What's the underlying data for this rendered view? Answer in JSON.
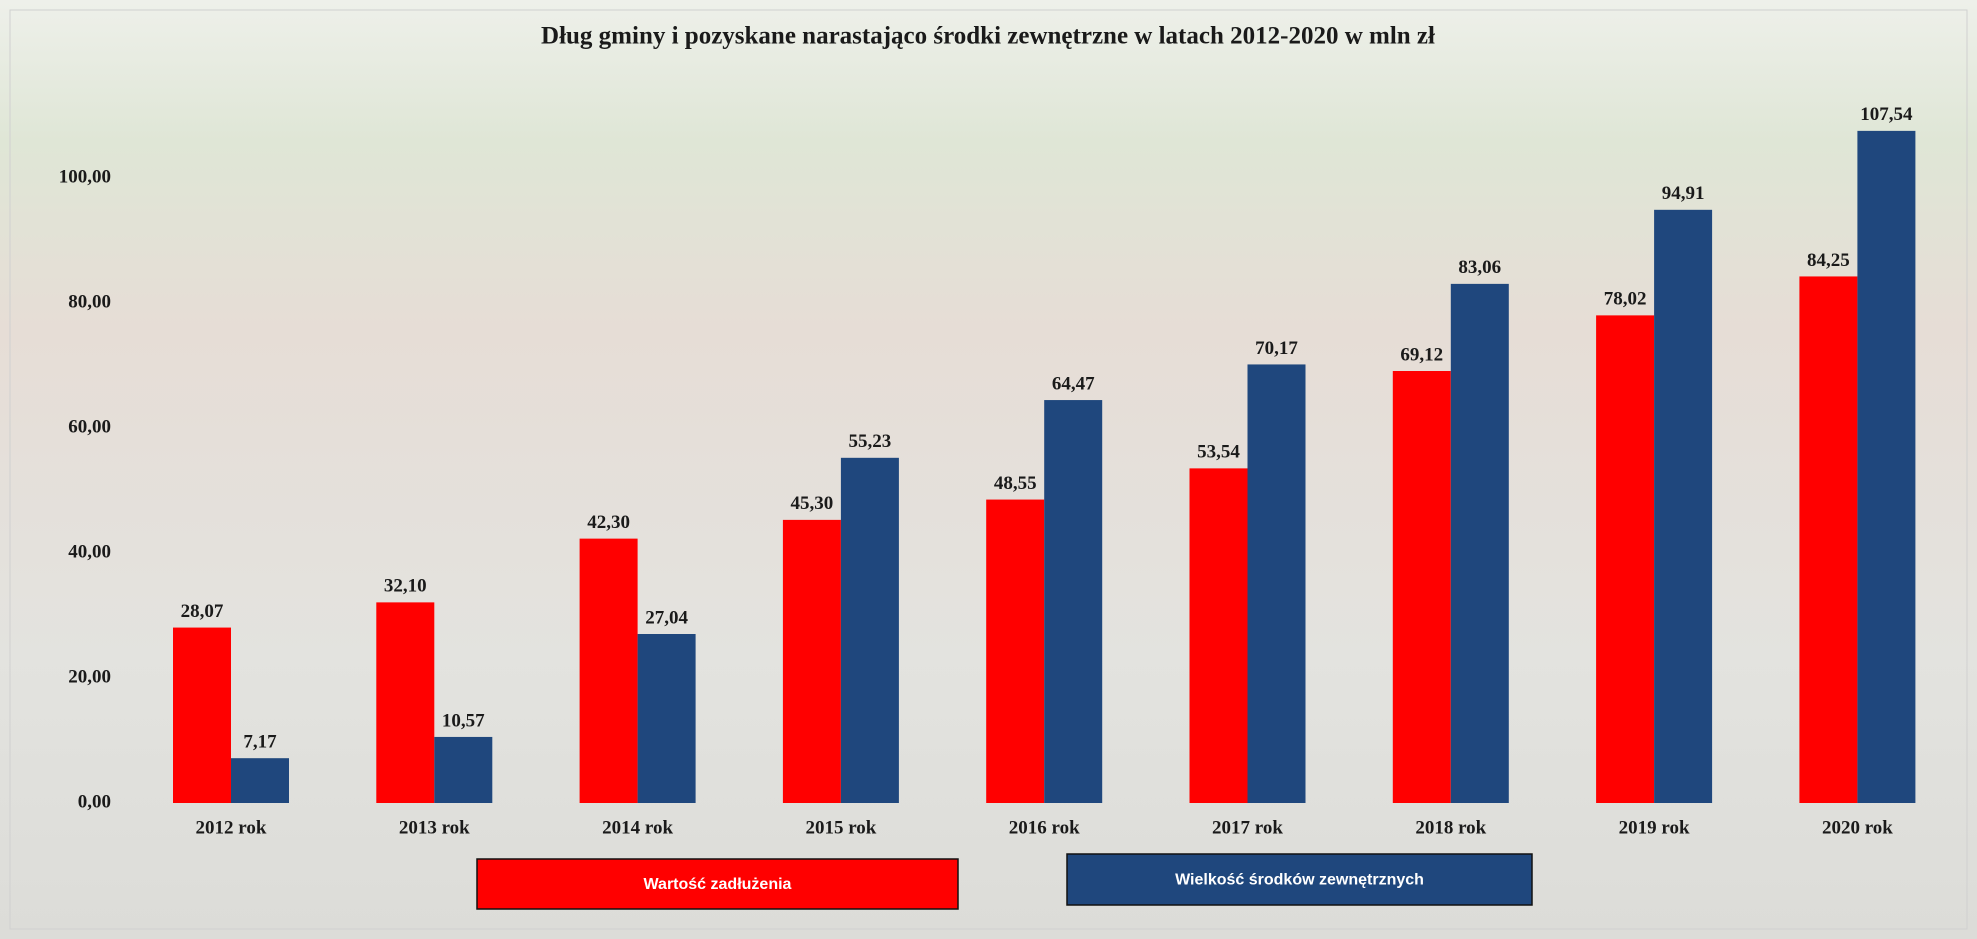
{
  "chart_data": {
    "type": "bar",
    "title": "Dług gminy i pozyskane narastająco środki zewnętrzne w latach 2012-2020 w mln zł",
    "categories": [
      "2012 rok",
      "2013 rok",
      "2014 rok",
      "2015 rok",
      "2016 rok",
      "2017 rok",
      "2018 rok",
      "2019 rok",
      "2020 rok"
    ],
    "series": [
      {
        "name": "Wartość zadłużenia",
        "color": "#ff0000",
        "values": [
          28.07,
          32.1,
          42.3,
          45.3,
          48.55,
          53.54,
          69.12,
          78.02,
          84.25
        ],
        "value_labels": [
          "28,07",
          "32,10",
          "42,30",
          "45,30",
          "48,55",
          "53,54",
          "69,12",
          "78,02",
          "84,25"
        ]
      },
      {
        "name": "Wielkość środków zewnętrznych",
        "color": "#1f477d",
        "values": [
          7.17,
          10.57,
          27.04,
          55.23,
          64.47,
          70.17,
          83.06,
          94.91,
          107.54
        ],
        "value_labels": [
          "7,17",
          "10,57",
          "27,04",
          "55,23",
          "64,47",
          "70,17",
          "83,06",
          "94,91",
          "107,54"
        ]
      }
    ],
    "ylim": [
      0,
      110
    ],
    "yticks": [
      {
        "value": 0,
        "label": "0,00"
      },
      {
        "value": 20,
        "label": "20,00"
      },
      {
        "value": 40,
        "label": "40,00"
      },
      {
        "value": 60,
        "label": "60,00"
      },
      {
        "value": 80,
        "label": "80,00"
      },
      {
        "value": 100,
        "label": "100,00"
      }
    ],
    "grid": false,
    "legend": "bottom"
  }
}
